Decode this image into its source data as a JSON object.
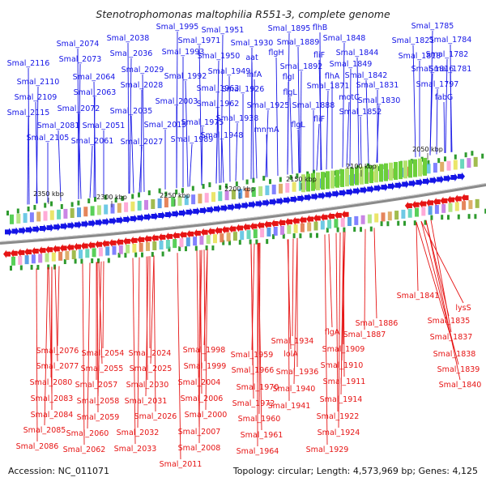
{
  "title": "Stenotrophomonas maltophilia R551-3, complete genome",
  "accession": "Accession: NC_011071",
  "summary": "Topology: circular; Length: 4,573,969 bp; Genes: 4,125",
  "colors": {
    "plus_strand": "#1414e6",
    "minus_strand": "#e61414",
    "backbone": "#8c8c8c",
    "tick_green": "#2e9b2e"
  },
  "ruler_ticks": [
    "2050 kbp",
    "2100 kbp",
    "2150 kbp",
    "2200 kbp",
    "2250 kbp",
    "2300 kbp",
    "2350 kbp"
  ],
  "plus_genes": [
    "Smal_1785",
    "Smal_1784",
    "Smal_1782",
    "Smal_1781",
    "Smal_1797",
    "Smal_1821",
    "Smal_1818",
    "Smal_1816",
    "fabG",
    "Smal_1848",
    "Smal_1844",
    "Smal_1849",
    "Smal_1842",
    "Smal_1831",
    "Smal_1830",
    "flhB",
    "Smal_1895",
    "Smal_1889",
    "Smal_1892",
    "fliF",
    "flhA",
    "motC",
    "Smal_1852",
    "Smal_1871",
    "flgH",
    "flgI",
    "flgL",
    "Smal_1888",
    "fliF",
    "flgL",
    "Smal_1951",
    "aat",
    "Smal_1930",
    "infA",
    "Smal_1926",
    "Smal_1925",
    "mnmA",
    "Smal_1938",
    "Smal_1948",
    "Smal_1995",
    "Smal_1971",
    "Smal_1993",
    "Smal_1950",
    "Smal_1949",
    "Smal_1963",
    "Smal_1962",
    "Smal_1975",
    "Smal_1992",
    "Smal_2003",
    "Smal_1989",
    "Smal_2038",
    "Smal_2036",
    "Smal_2029",
    "Smal_2028",
    "Smal_2035",
    "Smal_2015",
    "Smal_2027",
    "Smal_2074",
    "Smal_2073",
    "Smal_2064",
    "Smal_2063",
    "Smal_2072",
    "Smal_2051",
    "Smal_2061",
    "Smal_2116",
    "Smal_2110",
    "Smal_2109",
    "Smal_2115",
    "Smal_2081",
    "Smal_2105"
  ],
  "minus_genes": [
    "Smal_1841",
    "lysS",
    "Smal_1835",
    "Smal_1837",
    "Smal_1838",
    "Smal_1839",
    "Smal_1840",
    "Smal_1886",
    "Smal_1887",
    "flgA",
    "Smal_1909",
    "Smal_1910",
    "Smal_1911",
    "Smal_1914",
    "Smal_1922",
    "Smal_1924",
    "Smal_1929",
    "Smal_1934",
    "lolA",
    "Smal_1936",
    "Smal_1940",
    "Smal_1941",
    "Smal_1959",
    "Smal_1966",
    "Smal_1970",
    "Smal_1972",
    "Smal_1960",
    "Smal_1961",
    "Smal_1964",
    "Smal_1998",
    "Smal_1999",
    "Smal_2004",
    "Smal_2006",
    "Smal_2000",
    "Smal_2007",
    "Smal_2008",
    "Smal_2011",
    "Smal_2024",
    "Smal_2025",
    "Smal_2030",
    "Smal_2031",
    "Smal_2026",
    "Smal_2032",
    "Smal_2033",
    "Smal_2054",
    "Smal_2055",
    "Smal_2057",
    "Smal_2058",
    "Smal_2059",
    "Smal_2060",
    "Smal_2062",
    "Smal_2076",
    "Smal_2077",
    "Smal_2080",
    "Smal_2083",
    "Smal_2084",
    "Smal_2085",
    "Smal_2086"
  ]
}
